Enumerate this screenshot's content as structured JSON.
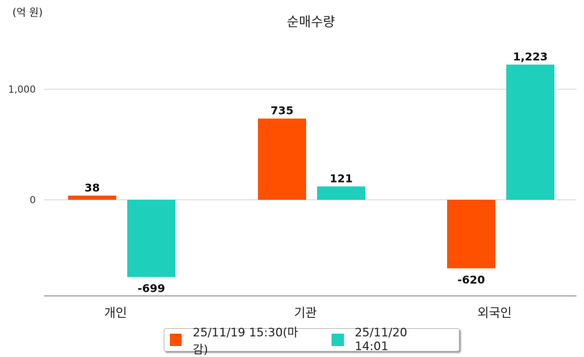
{
  "chart_data": {
    "type": "bar",
    "title": "순매수량",
    "unit_label": "(억 원)",
    "categories": [
      "개인",
      "기관",
      "외국인"
    ],
    "series": [
      {
        "name": "25/11/19 15:30(마감)",
        "color": "#ff5000",
        "values": [
          38,
          735,
          -620
        ],
        "labels": [
          "38",
          "735",
          "-620"
        ]
      },
      {
        "name": "25/11/20 14:01",
        "color": "#1ecfbc",
        "values": [
          -699,
          121,
          1223
        ],
        "labels": [
          "-699",
          "121",
          "1,223"
        ]
      }
    ],
    "yticks": [
      0,
      1000
    ],
    "ytick_labels": [
      "0",
      "1,000"
    ],
    "ylim": [
      -870,
      1380
    ],
    "grid": true,
    "legend_position": "bottom"
  }
}
